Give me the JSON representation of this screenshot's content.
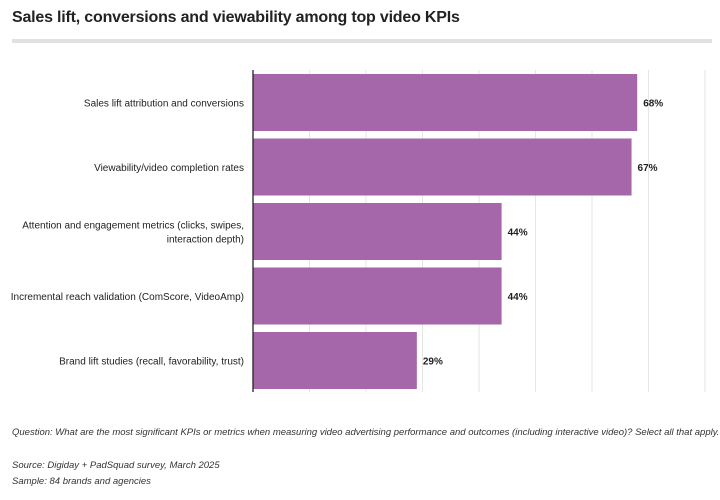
{
  "title": "Sales lift, conversions and viewability among top video KPIs",
  "colors": {
    "bar": "#a566aa",
    "gridline": "#e6e6e6",
    "axis": "#222222",
    "title_rule": "#e1e1e1"
  },
  "chart_data": {
    "type": "bar",
    "orientation": "horizontal",
    "categories": [
      "Sales lift attribution and conversions",
      "Viewability/video completion rates",
      "Attention and engagement metrics (clicks, swipes, interaction depth)",
      "Incremental reach validation (ComScore, VideoAmp)",
      "Brand lift studies (recall, favorability, trust)"
    ],
    "category_label_lines": [
      [
        "Sales lift attribution and conversions"
      ],
      [
        "Viewability/video completion rates"
      ],
      [
        "Attention and engagement metrics (clicks, swipes,",
        "interaction depth)"
      ],
      [
        "Incremental reach validation (ComScore, VideoAmp)"
      ],
      [
        "Brand lift studies (recall, favorability, trust)"
      ]
    ],
    "values": [
      68,
      67,
      44,
      44,
      29
    ],
    "data_labels": [
      "68%",
      "67%",
      "44%",
      "44%",
      "29%"
    ],
    "xlim": [
      0,
      80
    ],
    "grid": true,
    "gridline_step": 10,
    "value_suffix": "%"
  },
  "footnotes": {
    "question": "Question: What are the most significant KPIs or metrics when measuring video advertising performance and outcomes (including interactive video)? Select all that apply.",
    "source": "Source: Digiday + PadSquad survey, March 2025",
    "sample": "Sample: 84 brands and agencies"
  }
}
